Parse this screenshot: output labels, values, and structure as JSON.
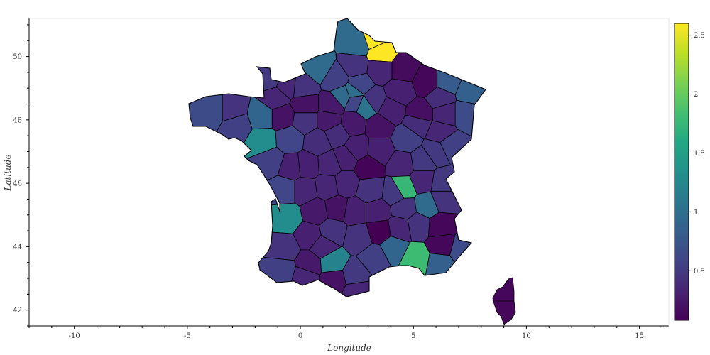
{
  "chart_data": {
    "type": "choropleth",
    "xlabel": "Longitude",
    "ylabel": "Latitude",
    "xlim": [
      -12,
      16.3
    ],
    "ylim": [
      41.5,
      51.2
    ],
    "xticks": [
      "-10",
      "-5",
      "0",
      "5",
      "10",
      "15"
    ],
    "yticks": [
      "42",
      "44",
      "46",
      "48",
      "50"
    ],
    "colorbar": {
      "colormap": "viridis",
      "range": [
        0.08,
        2.6
      ],
      "ticks": [
        "0.5",
        "1",
        "1.5",
        "2",
        "2.5"
      ]
    },
    "regions": [
      {
        "lon": 2.5,
        "lat": 50.4,
        "value": 0.95
      },
      {
        "lon": 3.3,
        "lat": 50.6,
        "value": 2.6
      },
      {
        "lon": 3.6,
        "lat": 50.1,
        "value": 2.6
      },
      {
        "lon": 0.8,
        "lat": 49.65,
        "value": 0.95
      },
      {
        "lon": 1.6,
        "lat": 49.3,
        "value": 0.55
      },
      {
        "lon": 2.4,
        "lat": 49.7,
        "value": 0.45
      },
      {
        "lon": 2.6,
        "lat": 49.1,
        "value": 0.6
      },
      {
        "lon": 3.55,
        "lat": 49.6,
        "value": 0.35
      },
      {
        "lon": 4.55,
        "lat": 49.6,
        "value": 0.15
      },
      {
        "lon": 5.6,
        "lat": 49.2,
        "value": 0.12
      },
      {
        "lon": 6.5,
        "lat": 49.2,
        "value": 0.8
      },
      {
        "lon": 7.5,
        "lat": 48.9,
        "value": 0.85
      },
      {
        "lon": 7.3,
        "lat": 48.2,
        "value": 0.65
      },
      {
        "lon": 6.2,
        "lat": 48.7,
        "value": 0.4
      },
      {
        "lon": 6.4,
        "lat": 48.2,
        "value": 0.35
      },
      {
        "lon": 5.3,
        "lat": 48.2,
        "value": 0.18
      },
      {
        "lon": 4.4,
        "lat": 48.9,
        "value": 0.3
      },
      {
        "lon": 4.0,
        "lat": 48.3,
        "value": 0.3
      },
      {
        "lon": 3.2,
        "lat": 48.6,
        "value": 0.45
      },
      {
        "lon": 2.35,
        "lat": 48.86,
        "value": 1.0
      },
      {
        "lon": 2.4,
        "lat": 48.6,
        "value": 0.6
      },
      {
        "lon": 1.9,
        "lat": 48.75,
        "value": 0.95
      },
      {
        "lon": 1.4,
        "lat": 48.45,
        "value": 0.25
      },
      {
        "lon": 2.9,
        "lat": 48.45,
        "value": 1.05
      },
      {
        "lon": 0.1,
        "lat": 49.05,
        "value": 0.45
      },
      {
        "lon": -0.6,
        "lat": 49.1,
        "value": 0.35
      },
      {
        "lon": -1.35,
        "lat": 49.3,
        "value": 0.5
      },
      {
        "lon": -1.1,
        "lat": 48.7,
        "value": 0.35
      },
      {
        "lon": 0.2,
        "lat": 48.45,
        "value": 0.2
      },
      {
        "lon": -3.9,
        "lat": 48.3,
        "value": 0.65
      },
      {
        "lon": -3.0,
        "lat": 48.3,
        "value": 0.45
      },
      {
        "lon": -2.8,
        "lat": 47.85,
        "value": 0.55
      },
      {
        "lon": -1.7,
        "lat": 48.1,
        "value": 0.9
      },
      {
        "lon": -0.8,
        "lat": 48.1,
        "value": 0.2
      },
      {
        "lon": 0.2,
        "lat": 48.0,
        "value": 0.45
      },
      {
        "lon": -1.65,
        "lat": 47.35,
        "value": 1.3
      },
      {
        "lon": -0.5,
        "lat": 47.4,
        "value": 0.6
      },
      {
        "lon": -1.3,
        "lat": 46.7,
        "value": 0.55
      },
      {
        "lon": 0.8,
        "lat": 47.3,
        "value": 0.4
      },
      {
        "lon": 1.6,
        "lat": 47.55,
        "value": 0.4
      },
      {
        "lon": 2.3,
        "lat": 47.9,
        "value": 0.25
      },
      {
        "lon": 1.3,
        "lat": 48.0,
        "value": 0.25
      },
      {
        "lon": 2.5,
        "lat": 47.1,
        "value": 0.3
      },
      {
        "lon": 3.5,
        "lat": 47.8,
        "value": 0.2
      },
      {
        "lon": 4.7,
        "lat": 47.4,
        "value": 0.55
      },
      {
        "lon": 5.2,
        "lat": 47.9,
        "value": 0.4
      },
      {
        "lon": 6.2,
        "lat": 47.6,
        "value": 0.35
      },
      {
        "lon": 6.6,
        "lat": 47.2,
        "value": 0.55
      },
      {
        "lon": 6.0,
        "lat": 47.0,
        "value": 0.5
      },
      {
        "lon": 3.5,
        "lat": 47.05,
        "value": 0.3
      },
      {
        "lon": 4.5,
        "lat": 46.6,
        "value": 0.35
      },
      {
        "lon": 5.4,
        "lat": 46.7,
        "value": 0.5
      },
      {
        "lon": 5.4,
        "lat": 46.1,
        "value": 0.35
      },
      {
        "lon": 4.55,
        "lat": 45.85,
        "value": 1.75
      },
      {
        "lon": 4.2,
        "lat": 45.7,
        "value": 0.5
      },
      {
        "lon": 6.3,
        "lat": 46.0,
        "value": 0.5
      },
      {
        "lon": 6.3,
        "lat": 45.5,
        "value": 0.45
      },
      {
        "lon": 5.6,
        "lat": 45.3,
        "value": 0.95
      },
      {
        "lon": 4.6,
        "lat": 45.2,
        "value": 0.45
      },
      {
        "lon": 3.0,
        "lat": 46.5,
        "value": 0.1
      },
      {
        "lon": 2.0,
        "lat": 46.8,
        "value": 0.3
      },
      {
        "lon": 1.3,
        "lat": 46.6,
        "value": 0.35
      },
      {
        "lon": 0.3,
        "lat": 46.55,
        "value": 0.3
      },
      {
        "lon": -0.4,
        "lat": 46.5,
        "value": 0.3
      },
      {
        "lon": -0.7,
        "lat": 45.8,
        "value": 0.6
      },
      {
        "lon": 0.2,
        "lat": 45.8,
        "value": 0.35
      },
      {
        "lon": 1.2,
        "lat": 45.9,
        "value": 0.35
      },
      {
        "lon": 2.0,
        "lat": 46.0,
        "value": 0.35
      },
      {
        "lon": 3.1,
        "lat": 45.8,
        "value": 0.45
      },
      {
        "lon": 3.4,
        "lat": 45.1,
        "value": 0.3
      },
      {
        "lon": 2.4,
        "lat": 45.1,
        "value": 0.3
      },
      {
        "lon": 1.6,
        "lat": 45.2,
        "value": 0.2
      },
      {
        "lon": 0.7,
        "lat": 45.1,
        "value": 0.25
      },
      {
        "lon": -0.6,
        "lat": 44.9,
        "value": 1.3
      },
      {
        "lon": 0.4,
        "lat": 44.35,
        "value": 0.3
      },
      {
        "lon": 1.4,
        "lat": 44.5,
        "value": 0.45
      },
      {
        "lon": 2.6,
        "lat": 44.3,
        "value": 0.45
      },
      {
        "lon": 3.5,
        "lat": 44.5,
        "value": 0.08
      },
      {
        "lon": 4.4,
        "lat": 44.6,
        "value": 0.35
      },
      {
        "lon": 5.2,
        "lat": 44.7,
        "value": 0.45
      },
      {
        "lon": 6.2,
        "lat": 44.65,
        "value": 0.12
      },
      {
        "lon": 6.3,
        "lat": 44.05,
        "value": 0.12
      },
      {
        "lon": 7.1,
        "lat": 43.9,
        "value": 0.65
      },
      {
        "lon": 6.2,
        "lat": 43.45,
        "value": 0.85
      },
      {
        "lon": 5.1,
        "lat": 43.6,
        "value": 1.8
      },
      {
        "lon": 4.1,
        "lat": 43.95,
        "value": 0.9
      },
      {
        "lon": 3.3,
        "lat": 43.65,
        "value": 0.55
      },
      {
        "lon": 2.4,
        "lat": 43.1,
        "value": 0.5
      },
      {
        "lon": 2.5,
        "lat": 42.6,
        "value": 0.35
      },
      {
        "lon": 1.4,
        "lat": 43.5,
        "value": 1.2
      },
      {
        "lon": 1.0,
        "lat": 44.0,
        "value": 0.35
      },
      {
        "lon": 1.5,
        "lat": 42.95,
        "value": 0.2
      },
      {
        "lon": 0.4,
        "lat": 43.45,
        "value": 0.25
      },
      {
        "lon": 0.2,
        "lat": 43.05,
        "value": 0.35
      },
      {
        "lon": -0.7,
        "lat": 43.95,
        "value": 0.45
      },
      {
        "lon": -0.8,
        "lat": 43.25,
        "value": 0.55
      },
      {
        "lon": 9.0,
        "lat": 42.2,
        "value": 0.12
      }
    ]
  }
}
